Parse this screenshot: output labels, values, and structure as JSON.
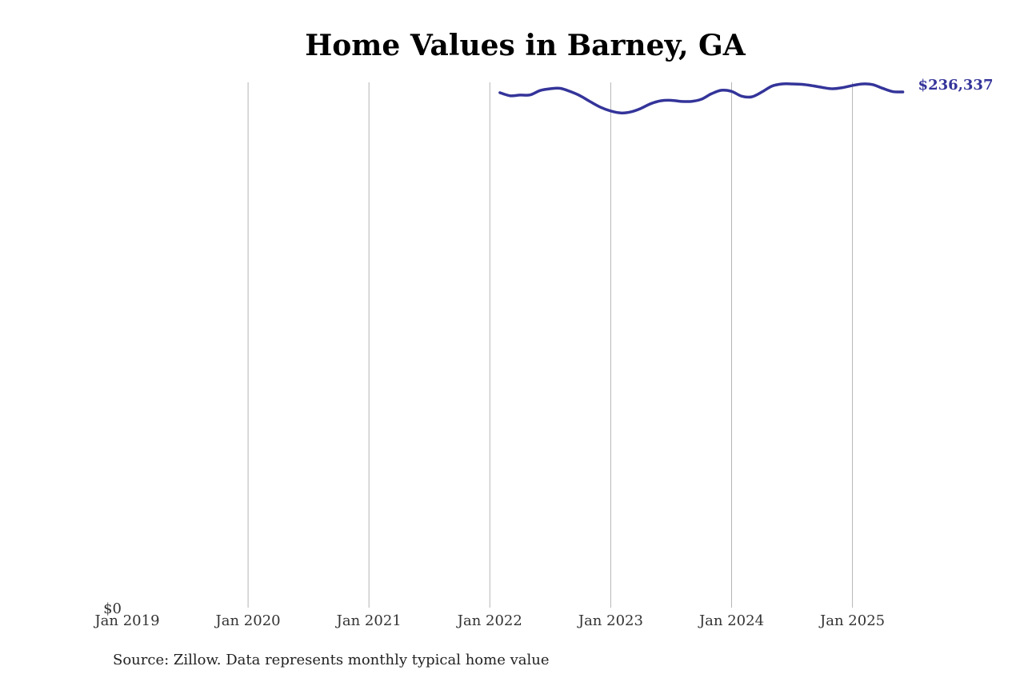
{
  "chart_data": {
    "type": "line",
    "title": "Home Values in Barney, GA",
    "xlabel": "",
    "ylabel": "",
    "x_ticks": [
      "Jan 2019",
      "Jan 2020",
      "Jan 2021",
      "Jan 2022",
      "Jan 2023",
      "Jan 2024",
      "Jan 2025"
    ],
    "y_ticks": [
      "$0"
    ],
    "xlim": [
      "2019-01",
      "2025-12"
    ],
    "ylim": [
      0,
      240000
    ],
    "grid": "vertical only",
    "legend": "none",
    "end_label": "$236,337",
    "colors": {
      "line": "#34349a",
      "grid": "#b5b5b5",
      "end_label": "#34349a"
    },
    "series": [
      {
        "x": [
          "2022-02",
          "2022-03",
          "2022-04",
          "2022-05",
          "2022-06",
          "2022-07",
          "2022-08",
          "2022-09",
          "2022-10",
          "2022-11",
          "2022-12",
          "2023-01",
          "2023-02",
          "2023-03",
          "2023-04",
          "2023-05",
          "2023-06",
          "2023-07",
          "2023-08",
          "2023-09",
          "2023-10",
          "2023-11",
          "2023-12",
          "2024-01",
          "2024-02",
          "2024-03",
          "2024-04",
          "2024-05",
          "2024-06",
          "2024-07",
          "2024-08",
          "2024-09",
          "2024-10",
          "2024-11",
          "2024-12",
          "2025-01",
          "2025-02",
          "2025-03",
          "2025-04",
          "2025-05",
          "2025-06"
        ],
        "values": [
          236000,
          234600,
          234900,
          235000,
          237000,
          237800,
          238000,
          236500,
          234500,
          231800,
          229300,
          227600,
          226700,
          227200,
          228800,
          231000,
          232300,
          232500,
          232000,
          232000,
          233000,
          235500,
          237100,
          236600,
          234400,
          234100,
          236300,
          239000,
          240000,
          240000,
          239800,
          239200,
          238400,
          237800,
          238300,
          239300,
          240000,
          239700,
          238000,
          236500,
          236337
        ]
      }
    ]
  },
  "source_note": "Source: Zillow. Data represents monthly typical home value"
}
